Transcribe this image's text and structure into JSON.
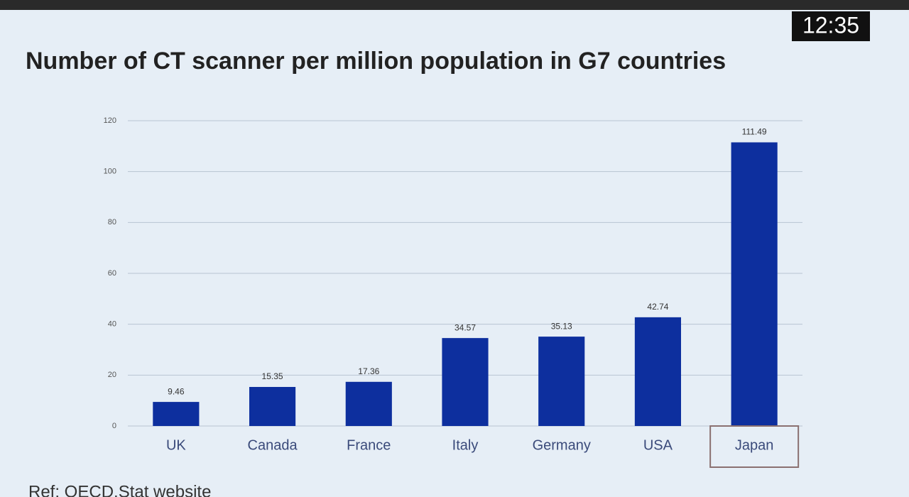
{
  "chart_data": {
    "type": "bar",
    "title": "Number of CT scanner per million population in G7 countries",
    "categories": [
      "UK",
      "Canada",
      "France",
      "Italy",
      "Germany",
      "USA",
      "Japan"
    ],
    "values": [
      9.46,
      15.35,
      17.36,
      34.57,
      35.13,
      42.74,
      111.49
    ],
    "color": "#0d2f9e",
    "ylim": [
      0,
      120
    ],
    "yticks": [
      0,
      20,
      40,
      60,
      80,
      100,
      120
    ],
    "grid": true,
    "source": "Ref: OECD.Stat website",
    "timestamp": "12:35"
  }
}
